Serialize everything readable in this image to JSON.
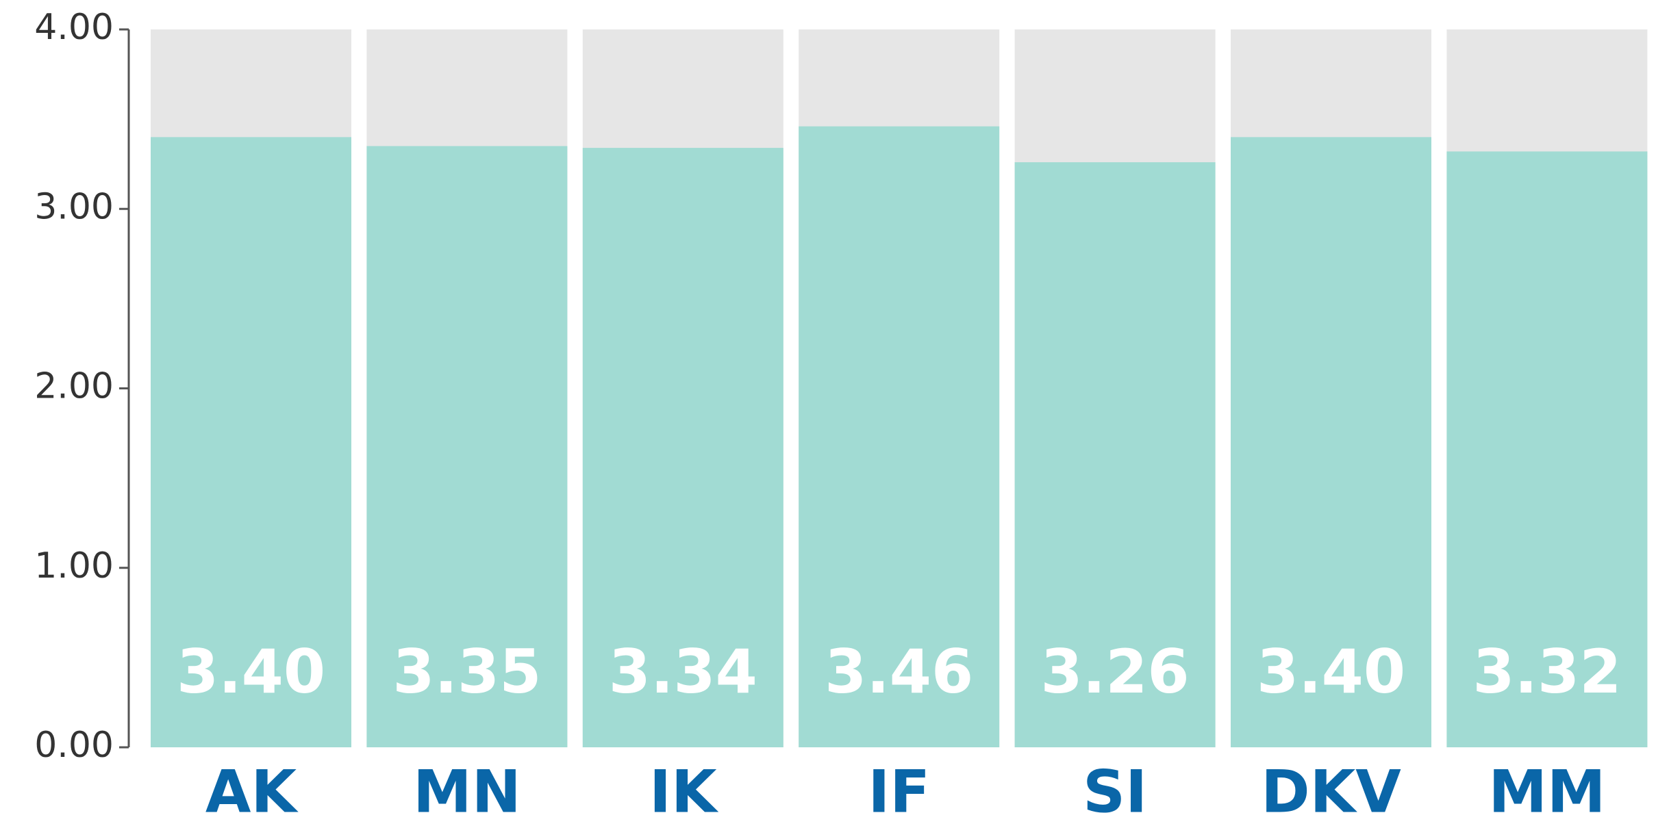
{
  "chart_data": {
    "type": "bar",
    "categories": [
      "AK",
      "MN",
      "IK",
      "IF",
      "SI",
      "DKV",
      "MM"
    ],
    "values": [
      3.4,
      3.35,
      3.34,
      3.46,
      3.26,
      3.4,
      3.32
    ],
    "value_labels": [
      "3.40",
      "3.35",
      "3.34",
      "3.46",
      "3.26",
      "3.40",
      "3.32"
    ],
    "color": "#a1dbd3",
    "ylim": [
      0,
      4
    ],
    "yticks": [
      {
        "value": 0,
        "label": "0.00"
      },
      {
        "value": 1,
        "label": "1.00"
      },
      {
        "value": 2,
        "label": "2.00"
      },
      {
        "value": 3,
        "label": "3.00"
      },
      {
        "value": 4,
        "label": "4.00"
      }
    ]
  }
}
